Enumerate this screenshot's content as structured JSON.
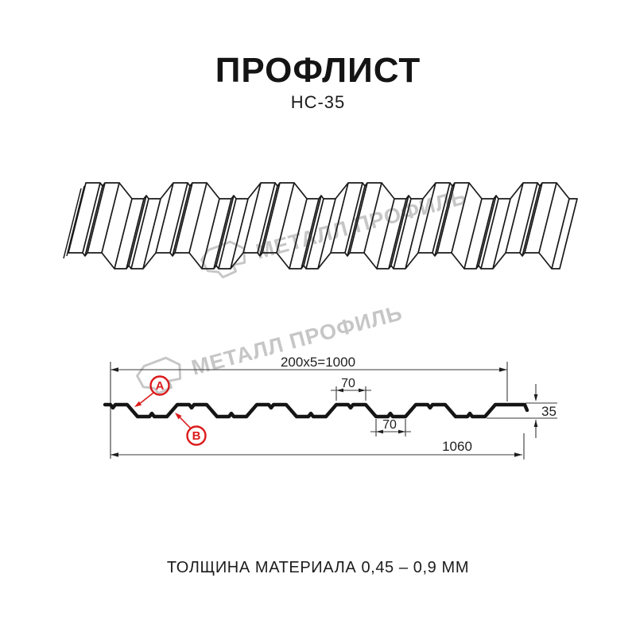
{
  "header": {
    "title": "ПРОФЛИСТ",
    "subtitle": "НС-35"
  },
  "watermark": {
    "brand": "МЕТАЛЛ ПРОФИЛЬ"
  },
  "diagram": {
    "dimensions": {
      "module_total": "200x5=1000",
      "rib_top_width": "70",
      "rib_bottom_width": "70",
      "profile_height": "35",
      "overall_width": "1060"
    },
    "markers": {
      "a": "А",
      "b": "В"
    }
  },
  "footer": {
    "note": "ТОЛЩИНА МАТЕРИАЛА 0,45 – 0,9 ММ"
  },
  "colors": {
    "accent_red": "#dd1b1b",
    "line_dark": "#151515",
    "watermark_gray": "#c6c6c6"
  }
}
